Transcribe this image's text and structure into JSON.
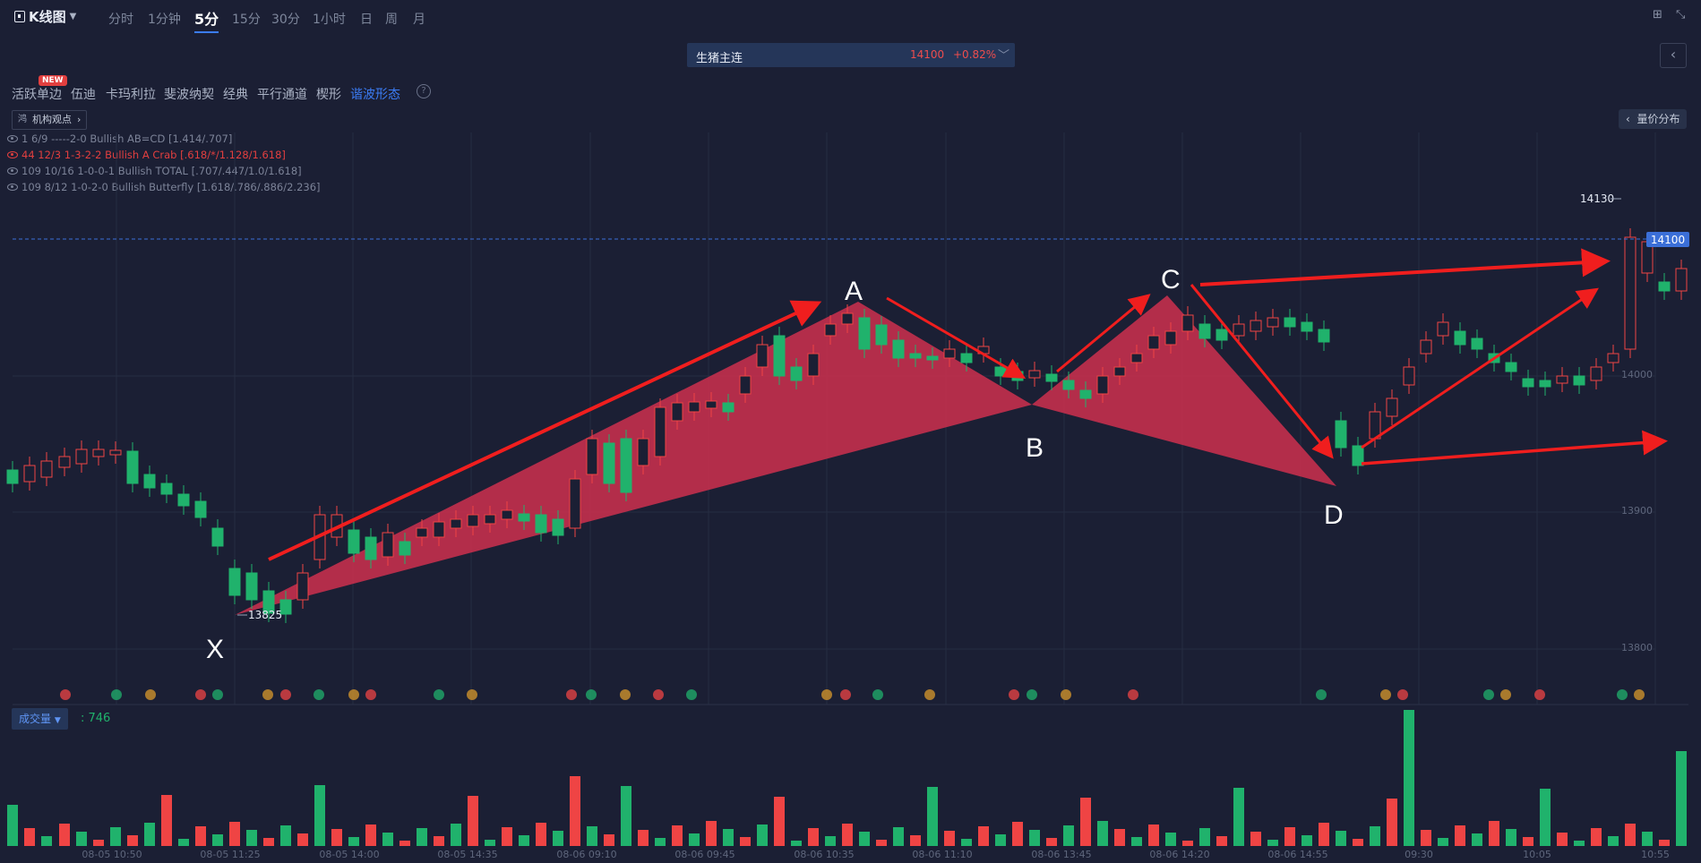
{
  "toolbar": {
    "title": "K线图",
    "timeframes": [
      "分时",
      "1分钟",
      "5分",
      "15分",
      "30分",
      "1小时",
      "日",
      "周",
      "月"
    ],
    "active_timeframe": "5分"
  },
  "symbol": {
    "name": "生猪主连",
    "price": "14100",
    "change": "+0.82%"
  },
  "tools": {
    "items": [
      "活跃单边",
      "伍迪",
      "卡玛利拉",
      "斐波纳契",
      "经典",
      "平行通道",
      "楔形",
      "谐波形态"
    ],
    "active": "谐波形态",
    "new_badge": "NEW",
    "help": "?"
  },
  "institution_button": {
    "prefix": "鸿",
    "label": "机构观点"
  },
  "volume_profile_button": "量价分布",
  "pattern_list": [
    "1 6/9 -----2-0 Bullish AB=CD [1.414/.707]",
    "44 12/3 1-3-2-2 Bullish A Crab [.618/*/1.128/1.618]",
    "109 10/16 1-0-0-1 Bullish TOTAL [.707/.447/1.0/1.618]",
    "109 8/12 1-0-2-0 Bullish Butterfly [1.618/.786/.886/2.236]"
  ],
  "highlighted_pattern_index": 1,
  "price_axis": [
    "14000",
    "13900",
    "13800"
  ],
  "current_price_tag": "14100",
  "high_label": "14130",
  "low_label": "13825",
  "pattern_points": [
    "X",
    "A",
    "B",
    "C",
    "D"
  ],
  "time_axis": [
    "08-05 10:50",
    "08-05 11:25",
    "08-05 14:00",
    "08-05 14:35",
    "08-06 09:10",
    "08-06 09:45",
    "08-06 10:35",
    "08-06 11:10",
    "08-06 13:45",
    "08-06 14:20",
    "08-06 14:55",
    "09:30",
    "10:05",
    "10:55"
  ],
  "volume": {
    "indicator": "成交量",
    "value": ": 746"
  },
  "colors": {
    "up": "#ef4444",
    "down": "#20b26c",
    "pattern_fill": "#c8304d",
    "arrow": "#f01e1e",
    "accent": "#3b7cf5",
    "background": "#1b1f34"
  }
}
